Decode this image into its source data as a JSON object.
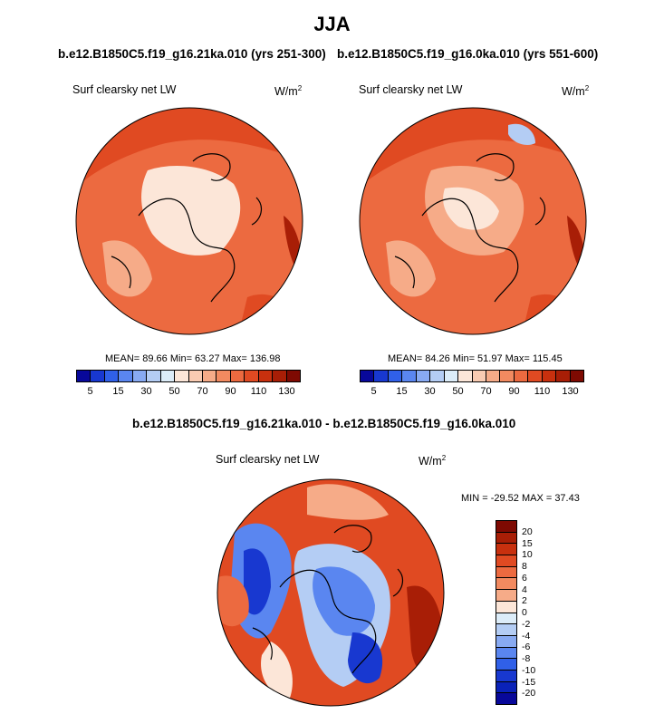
{
  "season": "JJA",
  "panels": {
    "left": {
      "case_title": "b.e12.B1850C5.f19_g16.21ka.010 (yrs 251-300)",
      "variable": "Surf clearsky net LW",
      "units": "W/m",
      "units_exp": "2",
      "stats": "MEAN= 89.66  Min= 63.27  Max= 136.98"
    },
    "right": {
      "case_title": "b.e12.B1850C5.f19_g16.0ka.010 (yrs 551-600)",
      "variable": "Surf clearsky net LW",
      "units": "W/m",
      "units_exp": "2",
      "stats": "MEAN= 84.26  Min= 51.97  Max= 115.45"
    },
    "diff": {
      "case_title": "b.e12.B1850C5.f19_g16.21ka.010 - b.e12.B1850C5.f19_g16.0ka.010",
      "variable": "Surf clearsky net LW",
      "units": "W/m",
      "units_exp": "2",
      "stats": "MIN = -29.52 MAX = 37.43"
    }
  },
  "colorbar_abs": {
    "colors": [
      "#08089a",
      "#1838d0",
      "#3060e8",
      "#5a86f0",
      "#88aaf2",
      "#b4cdf4",
      "#dcecf8",
      "#fce6d8",
      "#f9cbb2",
      "#f6ab88",
      "#f28a60",
      "#ec6a40",
      "#e04a22",
      "#c8300e",
      "#a81e06",
      "#7e0a02"
    ],
    "ticks": [
      "5",
      "15",
      "30",
      "50",
      "70",
      "90",
      "110",
      "130"
    ]
  },
  "colorbar_diff": {
    "colors": [
      "#7e0a02",
      "#a81e06",
      "#c8300e",
      "#e04a22",
      "#ec6a40",
      "#f28a60",
      "#f6ab88",
      "#fce6d8",
      "#dcecf8",
      "#b4cdf4",
      "#88aaf2",
      "#5a86f0",
      "#3060e8",
      "#1838d0",
      "#0a22b8",
      "#08089a"
    ],
    "ticks": [
      "20",
      "15",
      "10",
      "8",
      "6",
      "4",
      "2",
      "0",
      "-2",
      "-4",
      "-6",
      "-8",
      "-10",
      "-15",
      "-20"
    ]
  },
  "map_colors": {
    "land_outline": "#000000",
    "warm_dark": "#e04a22",
    "warm_mid": "#ec6a40",
    "warm_light": "#f6ab88",
    "warm_pale": "#fce6d8",
    "cool_pale": "#b4cdf4",
    "cool_mid": "#5a86f0",
    "cool_dark": "#1838d0",
    "deep_red": "#a81e06"
  }
}
